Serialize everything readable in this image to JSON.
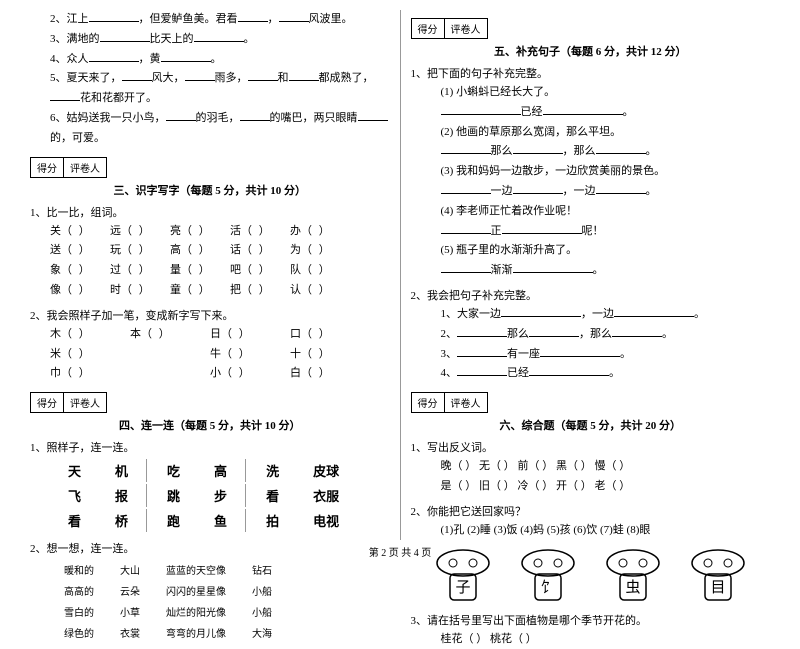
{
  "footer": "第 2 页 共 4 页",
  "left": {
    "q2": "2、江上",
    "q2b": "，但爱鲈鱼美。君看",
    "q2c": "，",
    "q2d": "风波里。",
    "q3": "3、满地的",
    "q3b": "比天上的",
    "q3c": "。",
    "q4": "4、众人",
    "q4b": "，黄",
    "q4c": "。",
    "q5": "5、夏天来了，",
    "q5b": "风大，",
    "q5c": "雨多，",
    "q5d": "和",
    "q5e": "都成熟了，",
    "q5f": "花和花都开了。",
    "q6": "6、姑妈送我一只小鸟，",
    "q6b": "的羽毛，",
    "q6c": "的嘴巴，两只眼睛",
    "q6d": "的，可爱。",
    "score1": "得分",
    "score2": "评卷人",
    "sec3_title": "三、识字写字（每题 5 分，共计 10 分）",
    "sec3_q1": "1、比一比，组词。",
    "sec3_chars": [
      [
        "关",
        "远",
        "亮",
        "活",
        "办"
      ],
      [
        "送",
        "玩",
        "高",
        "话",
        "为"
      ],
      [
        "象",
        "过",
        "量",
        "吧",
        "队"
      ],
      [
        "像",
        "时",
        "童",
        "把",
        "认"
      ]
    ],
    "sec3_q2": "2、我会照样子加一笔，变成新字写下来。",
    "sec3_chars2": [
      [
        "木",
        "本",
        "日",
        "口"
      ],
      [
        "米",
        "",
        "牛",
        "十"
      ],
      [
        "巾",
        "",
        "小",
        "白"
      ]
    ],
    "sec4_title": "四、连一连（每题 5 分，共计 10 分）",
    "sec4_q1": "1、照样子，连一连。",
    "match1": [
      [
        "天",
        "机",
        "吃",
        "高",
        "洗",
        "皮球"
      ],
      [
        "飞",
        "报",
        "跳",
        "步",
        "看",
        "衣服"
      ],
      [
        "看",
        "桥",
        "跑",
        "鱼",
        "拍",
        "电视"
      ]
    ],
    "sec4_q2": "2、想一想，连一连。",
    "match2": [
      [
        "暖和的",
        "大山",
        "蓝蓝的天空像",
        "钻石"
      ],
      [
        "高高的",
        "云朵",
        "闪闪的星星像",
        "小船"
      ],
      [
        "雪白的",
        "小草",
        "灿烂的阳光像",
        "小船"
      ],
      [
        "绿色的",
        "衣裳",
        "弯弯的月儿像",
        "大海"
      ]
    ]
  },
  "right": {
    "sec5_title": "五、补充句子（每题 6 分，共计 12 分）",
    "sec5_q1": "1、把下面的句子补充完整。",
    "sec5_items": [
      "(1) 小蝌蚪已经长大了。",
      "已经",
      "(2) 他画的草原那么宽阔，那么平坦。",
      "那么",
      "那么",
      "(3) 我和妈妈一边散步，一边欣赏美丽的景色。",
      "一边",
      "一边",
      "(4) 李老师正忙着改作业呢！",
      "正",
      "呢！",
      "(5) 瓶子里的水渐渐升高了。",
      "渐渐"
    ],
    "sec5_q2": "2、我会把句子补充完整。",
    "sec5_q2_items": [
      "1、大家一边",
      "，一边",
      "2、",
      "那么",
      "那么",
      "3、",
      "有一座",
      "4、",
      "已经"
    ],
    "sec6_title": "六、综合题（每题 5 分，共计 20 分）",
    "sec6_q1": "1、写出反义词。",
    "sec6_r1": [
      "晚（",
      "）",
      "无（",
      "）",
      "前（",
      "）",
      "黑（",
      "）",
      "慢（",
      "）"
    ],
    "sec6_r2": [
      "是（",
      "）",
      "旧（",
      "）",
      "冷（",
      "）",
      "开（",
      "）",
      "老（",
      "）"
    ],
    "sec6_q2": "2、你能把它送回家吗？",
    "sec6_labels": [
      "(1)孔",
      "(2)睡",
      "(3)饭",
      "(4)蚂",
      "(5)孩",
      "(6)饮",
      "(7)蛙",
      "(8)眼"
    ],
    "mushroom_chars": [
      "子",
      "饣",
      "虫",
      "目"
    ],
    "sec6_q3": "3、请在括号里写出下面植物是哪个季节开花的。",
    "sec6_q3_items": "桂花（          ）                    桃花（          ）"
  },
  "colors": {
    "text": "#000000",
    "bg": "#ffffff",
    "border": "#999999"
  }
}
